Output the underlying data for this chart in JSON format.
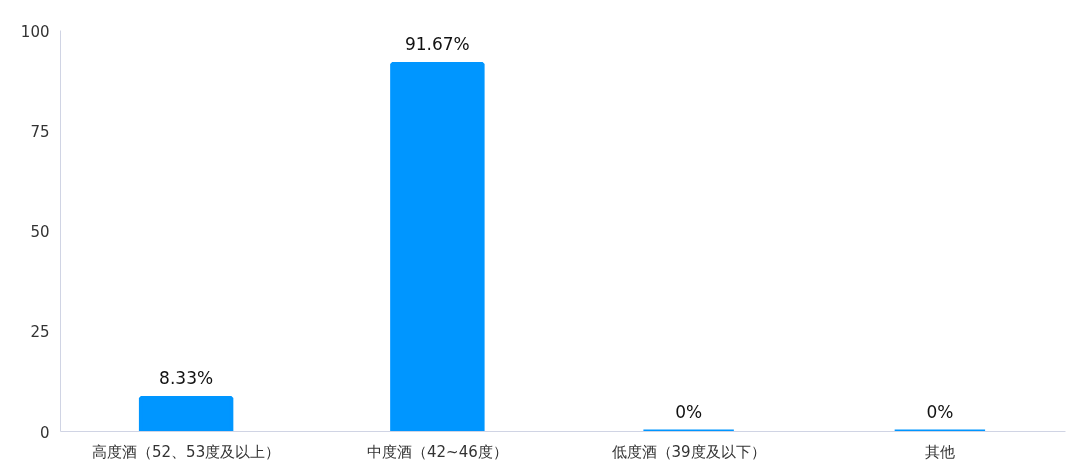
{
  "chart_data": {
    "type": "bar",
    "categories": [
      "高度酒（52、53度及以上）",
      "中度酒（42~46度）",
      "低度酒（39度及以下）",
      "其他"
    ],
    "values": [
      8.33,
      91.67,
      0,
      0
    ],
    "value_labels": [
      "8.33%",
      "91.67%",
      "0%",
      "0%"
    ],
    "color": "#0096ff",
    "ylim": [
      0,
      100
    ],
    "yticks": [
      0,
      25,
      50,
      75,
      100
    ],
    "grid": false
  }
}
